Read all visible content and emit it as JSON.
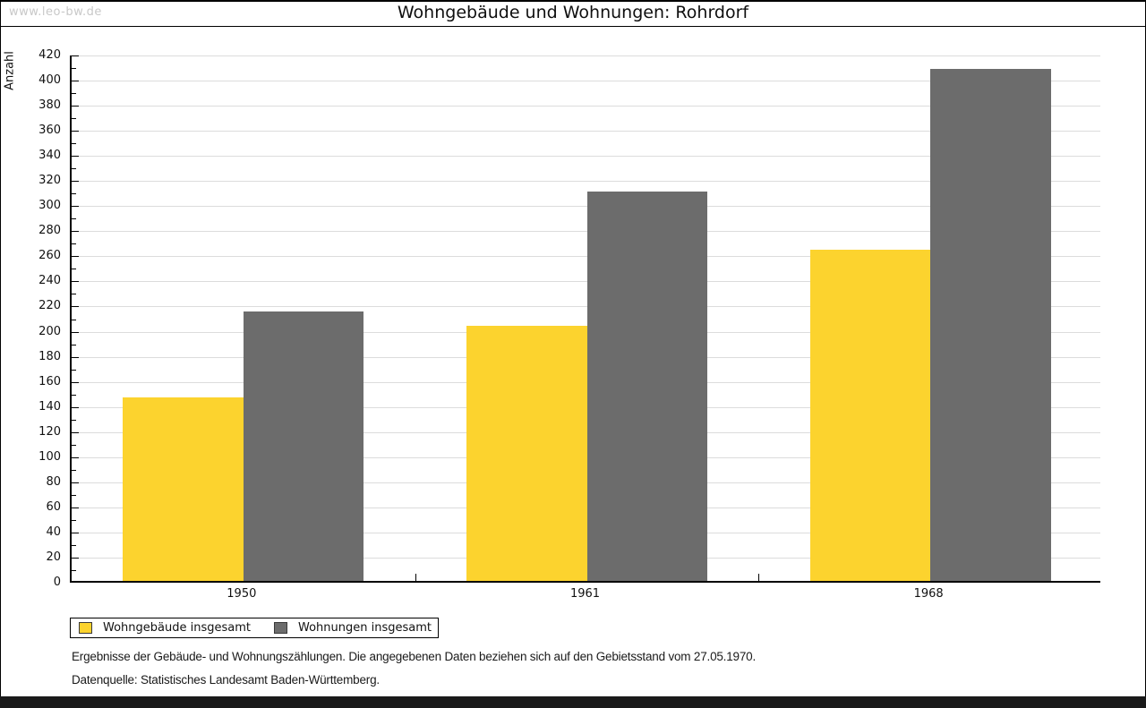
{
  "window": {
    "watermark": "www.leo-bw.de"
  },
  "chart_data": {
    "type": "bar",
    "title": "Wohngebäude und Wohnungen: Rohrdorf",
    "ylabel": "Anzahl",
    "xlabel": "",
    "categories": [
      "1950",
      "1961",
      "1968"
    ],
    "series": [
      {
        "name": "Wohngebäude insgesamt",
        "color": "#fcd32e",
        "values": [
          146,
          203,
          264
        ]
      },
      {
        "name": "Wohnungen insgesamt",
        "color": "#6c6c6c",
        "values": [
          215,
          310,
          408
        ]
      }
    ],
    "ylim": [
      0,
      420
    ],
    "ytick_step": 20,
    "minor_tick_step": 10,
    "grid": "horizontal-major",
    "grid_color": "#dcdcdc",
    "legend_position": "bottom-left"
  },
  "notes": {
    "line1": "Ergebnisse der Gebäude- und Wohnungszählungen. Die angegebenen Daten beziehen sich auf den Gebietsstand vom 27.05.1970.",
    "line2": "Datenquelle: Statistisches Landesamt Baden-Württemberg."
  }
}
